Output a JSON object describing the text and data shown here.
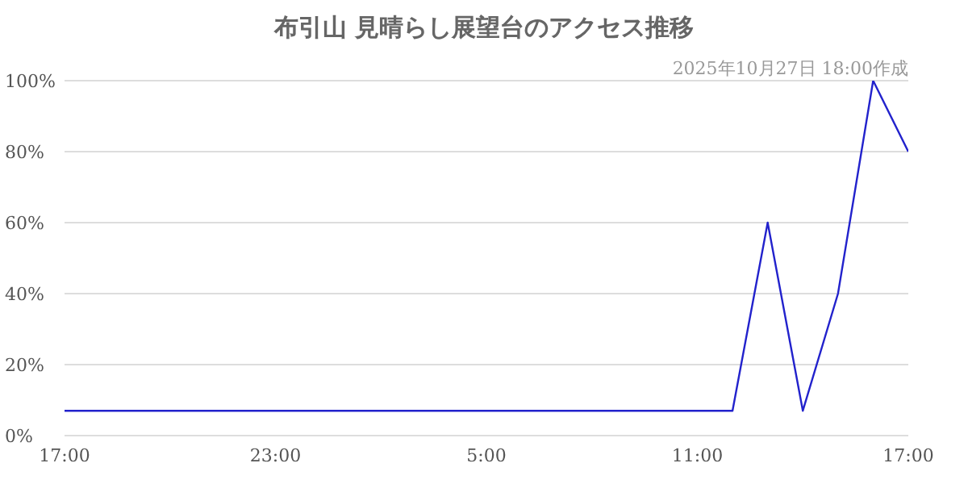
{
  "chart_data": {
    "type": "line",
    "title": "布引山 見晴らし展望台のアクセス推移",
    "subtitle": "2025年10月27日 18:00作成",
    "x": [
      "2025-10-26T17:00",
      "2025-10-26T18:00",
      "2025-10-26T19:00",
      "2025-10-26T20:00",
      "2025-10-26T21:00",
      "2025-10-26T22:00",
      "2025-10-26T23:00",
      "2025-10-27T00:00",
      "2025-10-27T01:00",
      "2025-10-27T02:00",
      "2025-10-27T03:00",
      "2025-10-27T04:00",
      "2025-10-27T05:00",
      "2025-10-27T06:00",
      "2025-10-27T07:00",
      "2025-10-27T08:00",
      "2025-10-27T09:00",
      "2025-10-27T10:00",
      "2025-10-27T11:00",
      "2025-10-27T12:00",
      "2025-10-27T13:00",
      "2025-10-27T14:00",
      "2025-10-27T15:00",
      "2025-10-27T16:00",
      "2025-10-27T17:00"
    ],
    "series": [
      {
        "color": "#2222cc",
        "values": [
          7,
          7,
          7,
          7,
          7,
          7,
          7,
          7,
          7,
          7,
          7,
          7,
          7,
          7,
          7,
          7,
          7,
          7,
          7,
          7,
          60,
          7,
          40,
          100,
          80
        ]
      }
    ],
    "xlim": [
      "2025-10-26T17:00",
      "2025-10-27T17:00"
    ],
    "xticks": [
      {
        "value": "2025-10-26T17:00",
        "label": "17:00"
      },
      {
        "value": "2025-10-26T23:00",
        "label": "23:00"
      },
      {
        "value": "2025-10-27T05:00",
        "label": "5:00"
      },
      {
        "value": "2025-10-27T11:00",
        "label": "11:00"
      },
      {
        "value": "2025-10-27T17:00",
        "label": "17:00"
      }
    ],
    "ylim": [
      0,
      100
    ],
    "yticks": [
      {
        "value": 0,
        "label": "0%"
      },
      {
        "value": 20,
        "label": "20%"
      },
      {
        "value": 40,
        "label": "40%"
      },
      {
        "value": 60,
        "label": "60%"
      },
      {
        "value": 80,
        "label": "80%"
      },
      {
        "value": 100,
        "label": "100%"
      }
    ],
    "grid": "y",
    "legend": false,
    "marker": "none",
    "line_style": "solid"
  }
}
